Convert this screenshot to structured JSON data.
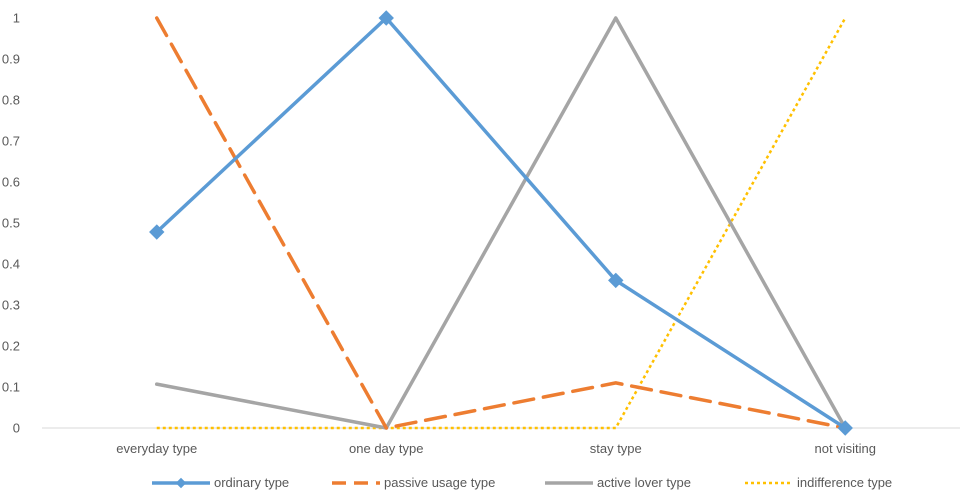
{
  "chart_data": {
    "type": "line",
    "categories": [
      "everyday type",
      "one day type",
      "stay type",
      "not visiting"
    ],
    "ylim": [
      0,
      1
    ],
    "yticks": [
      0,
      0.1,
      0.2,
      0.3,
      0.4,
      0.5,
      0.6,
      0.7,
      0.8,
      0.9,
      1
    ],
    "ytick_labels": [
      "0",
      "0.1",
      "0.2",
      "0.3",
      "0.4",
      "0.5",
      "0.6",
      "0.7",
      "0.8",
      "0.9",
      "1"
    ],
    "grid": false,
    "legend_position": "bottom",
    "series": [
      {
        "name": "ordinary type",
        "values": [
          0.478,
          1.0,
          0.36,
          0.0
        ],
        "color": "#5b9bd5",
        "style": "solid",
        "marker": "diamond"
      },
      {
        "name": "passive usage type",
        "values": [
          1.0,
          0.0,
          0.11,
          0.0
        ],
        "color": "#ed7d31",
        "style": "dashed",
        "marker": "none"
      },
      {
        "name": "active lover type",
        "values": [
          0.107,
          0.0,
          1.0,
          0.0
        ],
        "color": "#a5a5a5",
        "style": "solid",
        "marker": "none"
      },
      {
        "name": "indifference type",
        "values": [
          0.0,
          0.0,
          0.0,
          1.0
        ],
        "color": "#ffc000",
        "style": "dotted",
        "marker": "none"
      }
    ]
  }
}
